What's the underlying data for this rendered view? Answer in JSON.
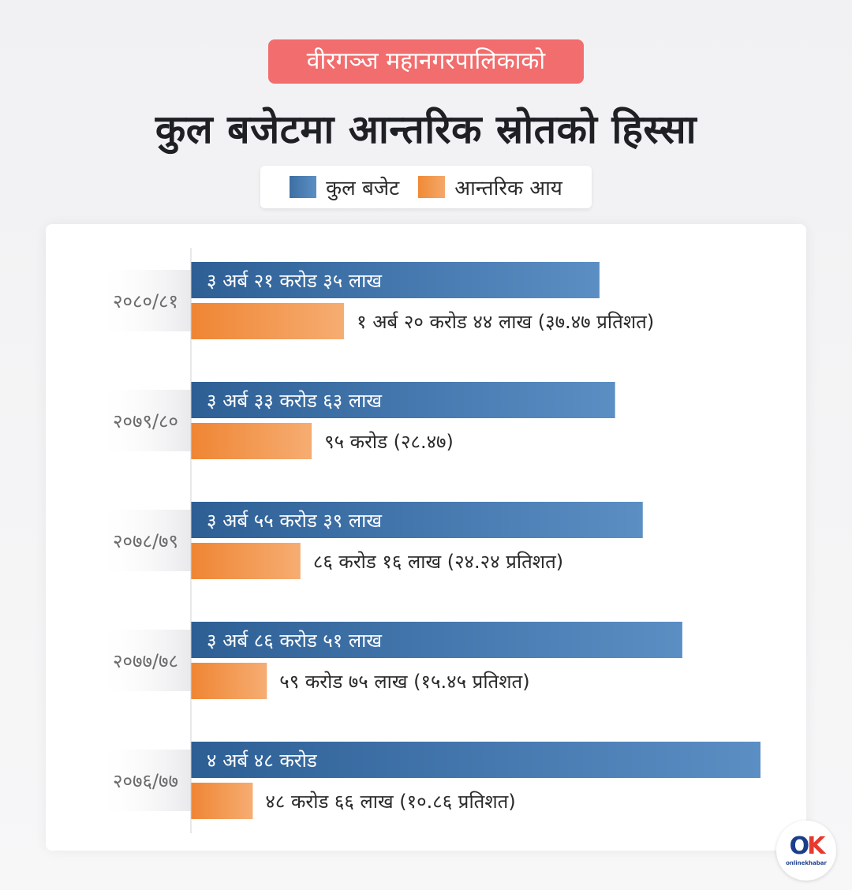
{
  "header": {
    "subtitle": "वीरगञ्ज महानगरपालिकाको",
    "title": "कुल बजेटमा आन्तरिक स्रोतको हिस्सा"
  },
  "legend": {
    "total_label": "कुल बजेट",
    "income_label": "आन्तरिक आय"
  },
  "colors": {
    "total_bar": "#3d6fa3",
    "income_bar": "#f08a36",
    "subtitle_bg": "#f26d6d"
  },
  "chart_data": {
    "type": "bar",
    "orientation": "horizontal",
    "categories": [
      "२०८०/८१",
      "२०७९/८०",
      "२०७८/७९",
      "२०७७/७८",
      "२०७६/७७"
    ],
    "series": [
      {
        "name": "कुल बजेट",
        "values_crore": [
          321.35,
          333.63,
          355.39,
          386.51,
          448
        ],
        "labels": [
          "३ अर्ब २१ करोड ३५ लाख",
          "३ अर्ब ३३ करोड ६३ लाख",
          "३ अर्ब ५५ करोड ३९ लाख",
          "३ अर्ब ८६ करोड ५१ लाख",
          "४ अर्ब ४८ करोड"
        ]
      },
      {
        "name": "आन्तरिक आय",
        "values_crore": [
          120.44,
          95,
          86.16,
          59.75,
          48.66
        ],
        "labels": [
          "१ अर्ब २० करोड ४४ लाख (३७.४७ प्रतिशत)",
          "९५ करोड (२८.४७)",
          "८६ करोड १६ लाख (२४.२४ प्रतिशत)",
          "५९ करोड ७५ लाख (१५.४५ प्रतिशत)",
          "४८ करोड ६६ लाख (१०.८६ प्रतिशत)"
        ]
      }
    ],
    "legend_position": "top",
    "grid": false
  },
  "branding": {
    "logo_mark": "OK",
    "logo_text": "onlinekhabar"
  }
}
